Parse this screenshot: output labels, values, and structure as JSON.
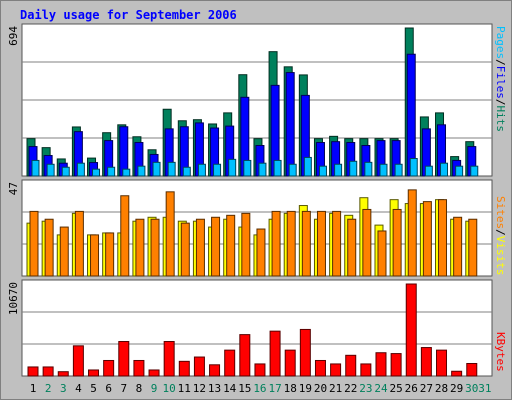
{
  "title": "Daily usage for September 2006",
  "colors": {
    "background": "#C0C0C0",
    "panel": "#FFFFFF",
    "title": "#0000FF",
    "grid": "#808080",
    "hits": "#00805C",
    "files": "#0000FF",
    "pages": "#00C0FF",
    "visits": "#FFFF00",
    "sites": "#FF8000",
    "kbytes": "#FF0000",
    "weekday_label": "#000000",
    "weekend_label": "#00805C"
  },
  "legend": {
    "top": [
      "Hits",
      "Files",
      "Pages"
    ],
    "middle": [
      "Visits",
      "Sites"
    ],
    "bottom": [
      "KBytes"
    ]
  },
  "chart_data": [
    {
      "type": "bar",
      "panel": "top",
      "ymax_label": "694",
      "ylim": [
        0,
        694
      ],
      "categories": [
        "1",
        "2",
        "3",
        "4",
        "5",
        "6",
        "7",
        "8",
        "9",
        "10",
        "11",
        "12",
        "13",
        "14",
        "15",
        "16",
        "17",
        "18",
        "19",
        "20",
        "21",
        "22",
        "23",
        "24",
        "25",
        "26",
        "27",
        "28",
        "29",
        "30"
      ],
      "weekend_days": [
        "2",
        "3",
        "9",
        "10",
        "16",
        "17",
        "23",
        "24",
        "30"
      ],
      "series": [
        {
          "name": "Hits",
          "values": [
            175,
            133,
            80,
            230,
            84,
            203,
            240,
            184,
            123,
            313,
            259,
            264,
            244,
            296,
            475,
            175,
            583,
            512,
            474,
            175,
            186,
            175,
            175,
            175,
            175,
            694,
            277,
            296,
            91,
            161
          ]
        },
        {
          "name": "Files",
          "values": [
            138,
            96,
            60,
            208,
            63,
            166,
            231,
            157,
            101,
            221,
            231,
            249,
            225,
            234,
            369,
            143,
            425,
            485,
            378,
            157,
            161,
            157,
            143,
            166,
            166,
            571,
            221,
            240,
            73,
            138
          ]
        },
        {
          "name": "Pages",
          "values": [
            73,
            55,
            41,
            60,
            32,
            41,
            32,
            46,
            64,
            64,
            41,
            55,
            55,
            78,
            73,
            60,
            73,
            55,
            87,
            46,
            55,
            69,
            64,
            55,
            55,
            82,
            46,
            60,
            46,
            46
          ]
        }
      ]
    },
    {
      "type": "bar",
      "panel": "middle",
      "ymax_label": "47",
      "ylim": [
        0,
        47
      ],
      "categories": [
        "1",
        "2",
        "3",
        "4",
        "5",
        "6",
        "7",
        "8",
        "9",
        "10",
        "11",
        "12",
        "13",
        "14",
        "15",
        "16",
        "17",
        "18",
        "19",
        "20",
        "21",
        "22",
        "23",
        "24",
        "25",
        "26",
        "27",
        "28",
        "29",
        "30"
      ],
      "series": [
        {
          "name": "Visits",
          "values": [
            27,
            28,
            21,
            32,
            21,
            22,
            22,
            28,
            30,
            30,
            28,
            28,
            25,
            29,
            25,
            21,
            29,
            32,
            36,
            29,
            32,
            31,
            40,
            26,
            39,
            37,
            37,
            39,
            29,
            28
          ]
        },
        {
          "name": "Sites",
          "values": [
            33,
            29,
            25,
            33,
            21,
            22,
            41,
            29,
            29,
            43,
            27,
            29,
            30,
            31,
            32,
            24,
            33,
            33,
            33,
            33,
            33,
            29,
            34,
            23,
            34,
            44,
            38,
            39,
            30,
            29
          ]
        }
      ]
    },
    {
      "type": "bar",
      "panel": "bottom",
      "ymax_label": "10670",
      "ylim": [
        0,
        10670
      ],
      "categories": [
        "1",
        "2",
        "3",
        "4",
        "5",
        "6",
        "7",
        "8",
        "9",
        "10",
        "11",
        "12",
        "13",
        "14",
        "15",
        "16",
        "17",
        "18",
        "19",
        "20",
        "21",
        "22",
        "23",
        "24",
        "25",
        "26",
        "27",
        "28",
        "29",
        "30"
      ],
      "series": [
        {
          "name": "KBytes",
          "values": [
            1050,
            1050,
            500,
            3500,
            700,
            1800,
            4000,
            1800,
            700,
            4000,
            1700,
            2200,
            1300,
            3000,
            4800,
            1400,
            5200,
            3000,
            5400,
            1800,
            1400,
            2400,
            1400,
            2700,
            2600,
            10670,
            3300,
            3000,
            550,
            1450
          ]
        }
      ]
    }
  ]
}
